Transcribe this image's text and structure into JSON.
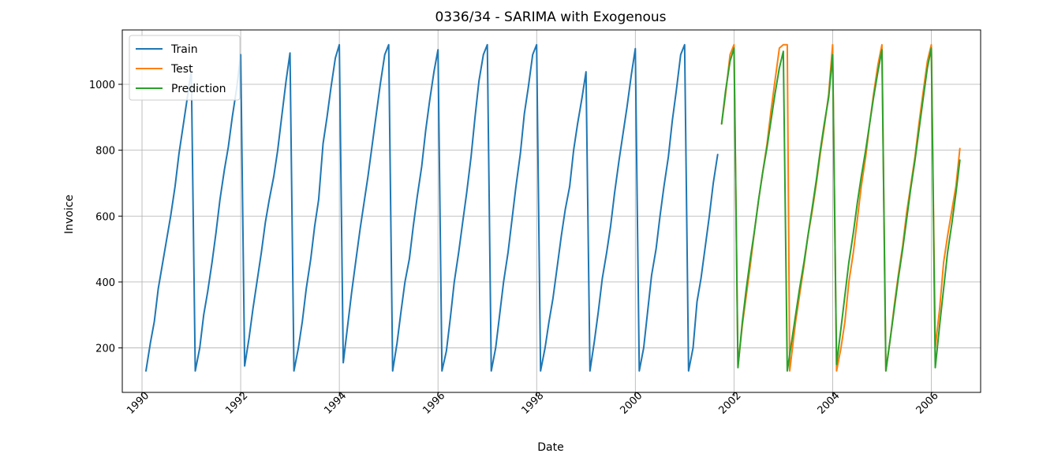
{
  "chart_data": {
    "type": "line",
    "title": "0336/34 - SARIMA with Exogenous",
    "xlabel": "Date",
    "ylabel": "Invoice",
    "xlim": [
      1989.6,
      2007.0
    ],
    "ylim": [
      65,
      1165
    ],
    "x_ticks": [
      1990,
      1992,
      1994,
      1996,
      1998,
      2000,
      2002,
      2004,
      2006
    ],
    "x_tick_labels": [
      "1990",
      "1992",
      "1994",
      "1996",
      "1998",
      "2000",
      "2002",
      "2004",
      "2006"
    ],
    "y_ticks": [
      200,
      400,
      600,
      800,
      1000
    ],
    "y_tick_labels": [
      "200",
      "400",
      "600",
      "800",
      "1000"
    ],
    "grid": true,
    "legend_position": "top-left",
    "series": [
      {
        "name": "Train",
        "color": "#1f77b4",
        "points": [
          [
            1990.08,
            130
          ],
          [
            1990.17,
            215
          ],
          [
            1990.25,
            280
          ],
          [
            1990.33,
            380
          ],
          [
            1990.42,
            460
          ],
          [
            1990.5,
            530
          ],
          [
            1990.58,
            600
          ],
          [
            1990.67,
            690
          ],
          [
            1990.75,
            790
          ],
          [
            1990.83,
            870
          ],
          [
            1990.92,
            960
          ],
          [
            1991.0,
            1040
          ],
          [
            1991.08,
            130
          ],
          [
            1991.17,
            200
          ],
          [
            1991.25,
            300
          ],
          [
            1991.33,
            370
          ],
          [
            1991.42,
            460
          ],
          [
            1991.5,
            550
          ],
          [
            1991.58,
            650
          ],
          [
            1991.67,
            740
          ],
          [
            1991.75,
            810
          ],
          [
            1991.83,
            900
          ],
          [
            1991.92,
            990
          ],
          [
            1992.0,
            1090
          ],
          [
            1992.08,
            145
          ],
          [
            1992.17,
            230
          ],
          [
            1992.25,
            320
          ],
          [
            1992.33,
            400
          ],
          [
            1992.42,
            490
          ],
          [
            1992.5,
            580
          ],
          [
            1992.58,
            650
          ],
          [
            1992.67,
            720
          ],
          [
            1992.75,
            800
          ],
          [
            1992.83,
            900
          ],
          [
            1992.92,
            1010
          ],
          [
            1993.0,
            1095
          ],
          [
            1993.08,
            130
          ],
          [
            1993.17,
            200
          ],
          [
            1993.25,
            280
          ],
          [
            1993.33,
            380
          ],
          [
            1993.42,
            470
          ],
          [
            1993.5,
            570
          ],
          [
            1993.58,
            650
          ],
          [
            1993.67,
            820
          ],
          [
            1993.75,
            900
          ],
          [
            1993.83,
            990
          ],
          [
            1993.92,
            1080
          ],
          [
            1994.0,
            1120
          ],
          [
            1994.08,
            155
          ],
          [
            1994.17,
            270
          ],
          [
            1994.25,
            370
          ],
          [
            1994.33,
            460
          ],
          [
            1994.42,
            560
          ],
          [
            1994.5,
            640
          ],
          [
            1994.58,
            720
          ],
          [
            1994.67,
            820
          ],
          [
            1994.75,
            910
          ],
          [
            1994.83,
            1000
          ],
          [
            1994.92,
            1090
          ],
          [
            1995.0,
            1120
          ],
          [
            1995.08,
            130
          ],
          [
            1995.17,
            215
          ],
          [
            1995.25,
            310
          ],
          [
            1995.33,
            400
          ],
          [
            1995.42,
            470
          ],
          [
            1995.5,
            570
          ],
          [
            1995.58,
            660
          ],
          [
            1995.67,
            750
          ],
          [
            1995.75,
            860
          ],
          [
            1995.83,
            950
          ],
          [
            1995.92,
            1040
          ],
          [
            1996.0,
            1105
          ],
          [
            1996.08,
            130
          ],
          [
            1996.17,
            190
          ],
          [
            1996.25,
            290
          ],
          [
            1996.33,
            400
          ],
          [
            1996.42,
            490
          ],
          [
            1996.5,
            580
          ],
          [
            1996.58,
            670
          ],
          [
            1996.67,
            780
          ],
          [
            1996.75,
            900
          ],
          [
            1996.83,
            1010
          ],
          [
            1996.92,
            1090
          ],
          [
            1997.0,
            1120
          ],
          [
            1997.08,
            130
          ],
          [
            1997.17,
            200
          ],
          [
            1997.25,
            300
          ],
          [
            1997.33,
            400
          ],
          [
            1997.42,
            490
          ],
          [
            1997.5,
            590
          ],
          [
            1997.58,
            690
          ],
          [
            1997.67,
            790
          ],
          [
            1997.75,
            910
          ],
          [
            1997.83,
            990
          ],
          [
            1997.92,
            1090
          ],
          [
            1998.0,
            1120
          ],
          [
            1998.08,
            130
          ],
          [
            1998.17,
            200
          ],
          [
            1998.25,
            280
          ],
          [
            1998.33,
            350
          ],
          [
            1998.42,
            450
          ],
          [
            1998.5,
            540
          ],
          [
            1998.58,
            620
          ],
          [
            1998.67,
            690
          ],
          [
            1998.75,
            800
          ],
          [
            1998.83,
            880
          ],
          [
            1998.92,
            960
          ],
          [
            1999.0,
            1038
          ],
          [
            1999.08,
            130
          ],
          [
            1999.17,
            220
          ],
          [
            1999.25,
            310
          ],
          [
            1999.33,
            410
          ],
          [
            1999.42,
            490
          ],
          [
            1999.5,
            570
          ],
          [
            1999.58,
            670
          ],
          [
            1999.67,
            770
          ],
          [
            1999.75,
            850
          ],
          [
            1999.83,
            930
          ],
          [
            1999.92,
            1030
          ],
          [
            2000.0,
            1108
          ],
          [
            2000.08,
            130
          ],
          [
            2000.17,
            200
          ],
          [
            2000.25,
            310
          ],
          [
            2000.33,
            420
          ],
          [
            2000.42,
            500
          ],
          [
            2000.5,
            600
          ],
          [
            2000.58,
            690
          ],
          [
            2000.67,
            780
          ],
          [
            2000.75,
            890
          ],
          [
            2000.83,
            980
          ],
          [
            2000.92,
            1090
          ],
          [
            2001.0,
            1120
          ],
          [
            2001.08,
            130
          ],
          [
            2001.17,
            200
          ],
          [
            2001.25,
            340
          ],
          [
            2001.33,
            410
          ],
          [
            2001.42,
            510
          ],
          [
            2001.5,
            600
          ],
          [
            2001.58,
            700
          ],
          [
            2001.67,
            787
          ]
        ]
      },
      {
        "name": "Test",
        "color": "#ff7f0e",
        "points": [
          [
            2001.75,
            880
          ],
          [
            2001.83,
            970
          ],
          [
            2001.92,
            1090
          ],
          [
            2002.0,
            1120
          ],
          [
            2002.08,
            145
          ],
          [
            2002.17,
            270
          ],
          [
            2002.25,
            360
          ],
          [
            2002.33,
            450
          ],
          [
            2002.42,
            560
          ],
          [
            2002.5,
            650
          ],
          [
            2002.58,
            730
          ],
          [
            2002.67,
            820
          ],
          [
            2002.75,
            920
          ],
          [
            2002.83,
            1010
          ],
          [
            2002.92,
            1110
          ],
          [
            2003.0,
            1120
          ],
          [
            2003.08,
            1120
          ],
          [
            2003.13,
            130
          ],
          [
            2003.25,
            280
          ],
          [
            2003.33,
            360
          ],
          [
            2003.42,
            450
          ],
          [
            2003.5,
            540
          ],
          [
            2003.58,
            610
          ],
          [
            2003.67,
            700
          ],
          [
            2003.75,
            790
          ],
          [
            2003.83,
            870
          ],
          [
            2003.92,
            970
          ],
          [
            2004.0,
            1120
          ],
          [
            2004.08,
            130
          ],
          [
            2004.17,
            200
          ],
          [
            2004.25,
            280
          ],
          [
            2004.33,
            400
          ],
          [
            2004.42,
            490
          ],
          [
            2004.5,
            590
          ],
          [
            2004.58,
            690
          ],
          [
            2004.67,
            780
          ],
          [
            2004.75,
            880
          ],
          [
            2004.83,
            970
          ],
          [
            2004.92,
            1060
          ],
          [
            2005.0,
            1120
          ],
          [
            2005.08,
            130
          ],
          [
            2005.17,
            230
          ],
          [
            2005.25,
            330
          ],
          [
            2005.33,
            420
          ],
          [
            2005.42,
            510
          ],
          [
            2005.5,
            610
          ],
          [
            2005.58,
            690
          ],
          [
            2005.67,
            780
          ],
          [
            2005.75,
            880
          ],
          [
            2005.83,
            970
          ],
          [
            2005.92,
            1070
          ],
          [
            2006.0,
            1120
          ],
          [
            2006.08,
            200
          ],
          [
            2006.17,
            320
          ],
          [
            2006.25,
            460
          ],
          [
            2006.33,
            540
          ],
          [
            2006.42,
            620
          ],
          [
            2006.5,
            690
          ],
          [
            2006.58,
            805
          ]
        ]
      },
      {
        "name": "Prediction",
        "color": "#2ca02c",
        "points": [
          [
            2001.75,
            880
          ],
          [
            2001.83,
            980
          ],
          [
            2001.92,
            1070
          ],
          [
            2002.0,
            1110
          ],
          [
            2002.08,
            140
          ],
          [
            2002.17,
            280
          ],
          [
            2002.25,
            380
          ],
          [
            2002.33,
            470
          ],
          [
            2002.42,
            560
          ],
          [
            2002.5,
            650
          ],
          [
            2002.58,
            730
          ],
          [
            2002.67,
            810
          ],
          [
            2002.75,
            890
          ],
          [
            2002.83,
            970
          ],
          [
            2002.92,
            1050
          ],
          [
            2003.0,
            1100
          ],
          [
            2003.08,
            130
          ],
          [
            2003.17,
            220
          ],
          [
            2003.25,
            300
          ],
          [
            2003.33,
            380
          ],
          [
            2003.42,
            460
          ],
          [
            2003.5,
            540
          ],
          [
            2003.58,
            620
          ],
          [
            2003.67,
            710
          ],
          [
            2003.75,
            800
          ],
          [
            2003.83,
            880
          ],
          [
            2003.92,
            960
          ],
          [
            2004.0,
            1090
          ],
          [
            2004.08,
            150
          ],
          [
            2004.17,
            260
          ],
          [
            2004.25,
            360
          ],
          [
            2004.33,
            460
          ],
          [
            2004.42,
            550
          ],
          [
            2004.5,
            640
          ],
          [
            2004.58,
            720
          ],
          [
            2004.67,
            800
          ],
          [
            2004.75,
            880
          ],
          [
            2004.83,
            960
          ],
          [
            2004.92,
            1040
          ],
          [
            2005.0,
            1105
          ],
          [
            2005.08,
            130
          ],
          [
            2005.17,
            230
          ],
          [
            2005.25,
            320
          ],
          [
            2005.33,
            410
          ],
          [
            2005.42,
            500
          ],
          [
            2005.5,
            590
          ],
          [
            2005.58,
            680
          ],
          [
            2005.67,
            770
          ],
          [
            2005.75,
            860
          ],
          [
            2005.83,
            950
          ],
          [
            2005.92,
            1050
          ],
          [
            2006.0,
            1110
          ],
          [
            2006.08,
            140
          ],
          [
            2006.17,
            270
          ],
          [
            2006.25,
            380
          ],
          [
            2006.33,
            490
          ],
          [
            2006.42,
            580
          ],
          [
            2006.5,
            670
          ],
          [
            2006.58,
            770
          ]
        ]
      }
    ]
  }
}
